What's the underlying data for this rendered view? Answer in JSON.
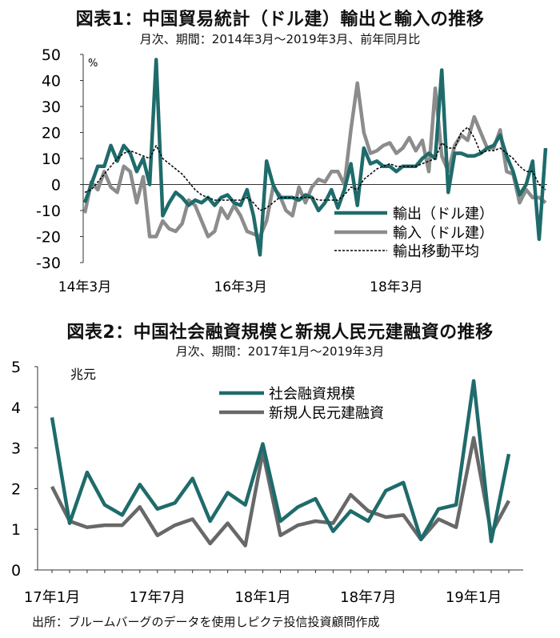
{
  "source": "出所：ブルームバーグのデータを使用しピクテ投信投資顧問作成",
  "chart_data": [
    {
      "type": "line",
      "title": "図表1：中国貿易統計（ドル建）輸出と輸入の推移",
      "subtitle": "月次、期間：2014年3月～2019年3月、前年同月比",
      "ylabel": "%",
      "ylim": [
        -30,
        50
      ],
      "yticks": [
        "50",
        "40",
        "30",
        "20",
        "10",
        "0",
        "-10",
        "-20",
        "-30"
      ],
      "xticks": [
        "14年3月",
        "16年3月",
        "18年3月"
      ],
      "legend_position": "bottom-right",
      "colors": {
        "exports": "#1f6b6b",
        "imports": "#8c8c8c",
        "ma": "#000000"
      },
      "series": [
        {
          "name": "輸出（ドル建）",
          "values": [
            -7,
            0,
            7,
            7,
            15,
            9,
            15,
            12,
            5,
            10,
            0,
            48,
            -12,
            -7,
            -3,
            -5,
            -8,
            -6,
            -7,
            -5,
            -8,
            -5,
            -4,
            -7,
            -8,
            -2,
            -12,
            -27,
            9,
            0,
            -5,
            -5,
            -5,
            -6,
            -4,
            -5,
            -10,
            -7,
            -2,
            -9,
            -2,
            8,
            -8,
            14,
            8,
            9,
            7,
            7,
            5,
            7,
            7,
            7,
            10,
            12,
            10,
            44,
            -3,
            12,
            12,
            11,
            11,
            12,
            14,
            15,
            19,
            11,
            5,
            -4,
            0,
            9,
            -21,
            14
          ]
        },
        {
          "name": "輸入（ドル建）",
          "values": [
            -11,
            1,
            -2,
            5,
            -1,
            -3,
            7,
            5,
            -7,
            3,
            -20,
            -20,
            -14,
            -17,
            -18,
            -15,
            -6,
            -8,
            -14,
            -20,
            -18,
            -9,
            -13,
            -8,
            -12,
            -18,
            -19,
            -20,
            -14,
            -1,
            -4,
            -10,
            -12,
            -1,
            -7,
            -1,
            2,
            1,
            5,
            5,
            0,
            21,
            39,
            20,
            12,
            13,
            15,
            16,
            12,
            14,
            18,
            13,
            17,
            5,
            37,
            11,
            5,
            15,
            19,
            17,
            26,
            20,
            14,
            14,
            21,
            5,
            4,
            -7,
            -2,
            -5,
            -5,
            -7
          ]
        },
        {
          "name": "輸出移動平均",
          "values": [
            -3,
            -2,
            1,
            4,
            7,
            10,
            12,
            13,
            12,
            11,
            10,
            15,
            10,
            8,
            6,
            4,
            1,
            -2,
            -4,
            -5,
            -6,
            -6,
            -6,
            -6,
            -6,
            -5,
            -7,
            -10,
            -9,
            -7,
            -5,
            -5,
            -5,
            -5,
            -5,
            -5,
            -6,
            -6,
            -6,
            -6,
            -4,
            -1,
            -2,
            2,
            4,
            6,
            7,
            8,
            7,
            7,
            7,
            7,
            8,
            9,
            10,
            16,
            14,
            14,
            20,
            22,
            18,
            12,
            13,
            13,
            14,
            12,
            10,
            7,
            5,
            5,
            0,
            -2
          ]
        }
      ]
    },
    {
      "type": "line",
      "title": "図表2：中国社会融資規模と新規人民元建融資の推移",
      "subtitle": "月次、期間：2017年1月～2019年3月",
      "ylabel": "兆元",
      "ylim": [
        0,
        5
      ],
      "yticks": [
        "5",
        "4",
        "3",
        "2",
        "1",
        "0"
      ],
      "xticks": [
        "17年1月",
        "17年7月",
        "18年1月",
        "18年7月",
        "19年1月"
      ],
      "legend_position": "top-center",
      "colors": {
        "tsf": "#1f6b6b",
        "loans": "#686868"
      },
      "series": [
        {
          "name": "社会融資規模",
          "values": [
            3.75,
            1.15,
            2.4,
            1.6,
            1.35,
            2.1,
            1.5,
            1.65,
            2.25,
            1.2,
            1.9,
            1.6,
            3.1,
            1.2,
            1.55,
            1.75,
            0.95,
            1.45,
            1.2,
            1.95,
            2.15,
            0.75,
            1.5,
            1.6,
            4.65,
            0.7,
            2.85
          ]
        },
        {
          "name": "新規人民元建融資",
          "values": [
            2.05,
            1.2,
            1.05,
            1.1,
            1.1,
            1.55,
            0.85,
            1.1,
            1.25,
            0.65,
            1.15,
            0.6,
            2.9,
            0.85,
            1.1,
            1.2,
            1.15,
            1.85,
            1.45,
            1.3,
            1.35,
            0.75,
            1.25,
            1.05,
            3.25,
            0.9,
            1.7
          ]
        }
      ]
    }
  ]
}
